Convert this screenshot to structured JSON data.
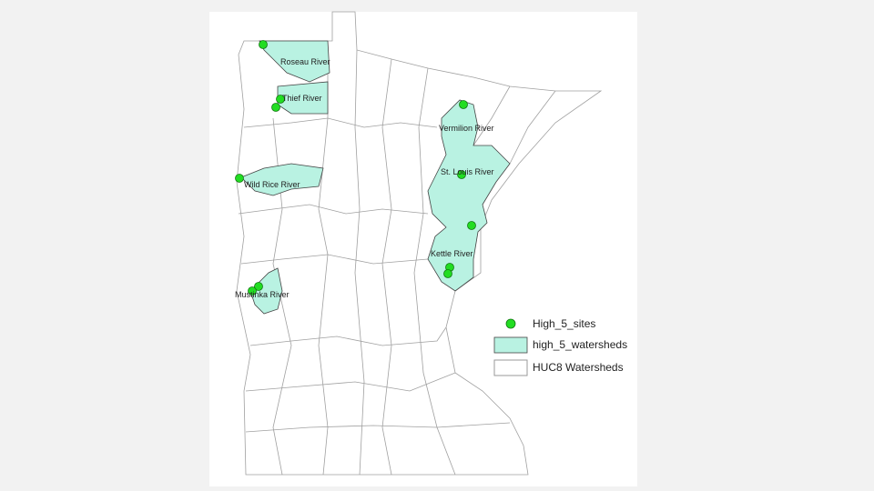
{
  "map": {
    "labels": [
      "Roseau River",
      "Thief River",
      "Vermilion River",
      "St. Louis River",
      "Wild Rice River",
      "Kettle River",
      "Mustinka River"
    ],
    "legend": [
      "High_5_sites",
      "high_5_watersheds",
      "HUC8 Watersheds"
    ]
  }
}
